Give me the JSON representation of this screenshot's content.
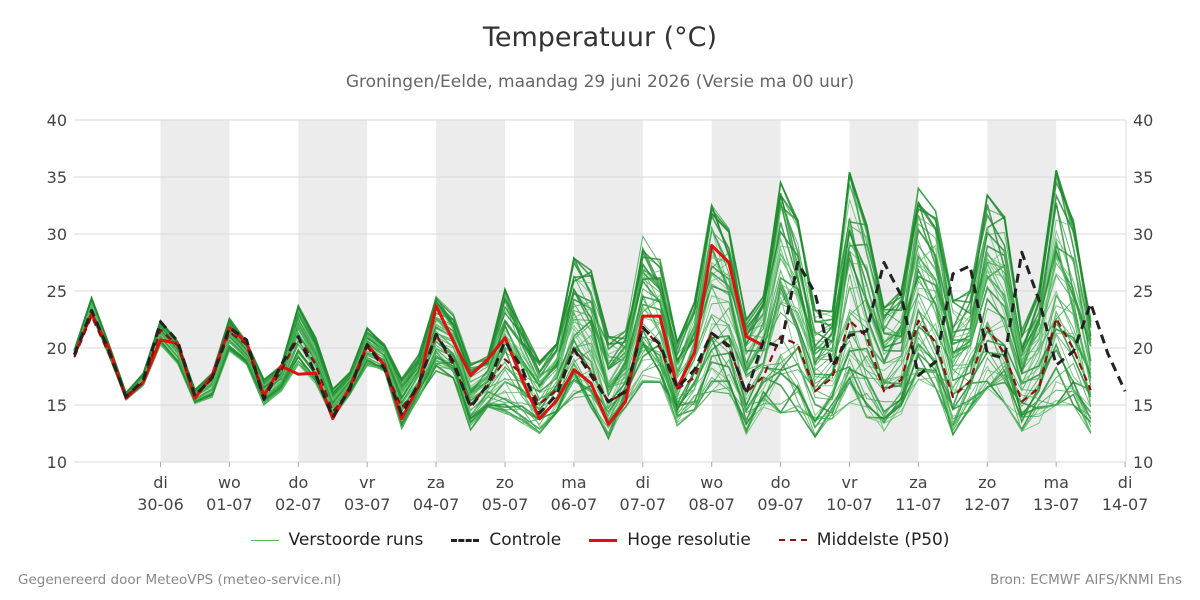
{
  "header": {
    "title": "Temperatuur (°C)",
    "subtitle": "Groningen/Eelde, maandag 29 juni 2026 (Versie ma 00 uur)"
  },
  "footer": {
    "left": "Gegenereerd door MeteoVPS (meteo-service.nl)",
    "right": "Bron: ECMWF AIFS/KNMI Ens"
  },
  "colors": {
    "ensemble": "#2e9e3e",
    "control": "#222222",
    "hires": "#e01010",
    "median": "#8b1010",
    "weekend_band": "#ececec",
    "grid": "#d9d9d9"
  },
  "chart_data": {
    "type": "line",
    "title": "Temperatuur (°C)",
    "ylabel": "",
    "ylim": [
      10,
      40
    ],
    "yticks": [
      10,
      15,
      20,
      25,
      30,
      35,
      40
    ],
    "xlim": [
      "2026-06-29",
      "2026-07-14"
    ],
    "x_resolution": "6-hourly",
    "x_ticks": [
      {
        "day": "di",
        "date": "30-06"
      },
      {
        "day": "wo",
        "date": "01-07"
      },
      {
        "day": "do",
        "date": "02-07"
      },
      {
        "day": "vr",
        "date": "03-07"
      },
      {
        "day": "za",
        "date": "04-07"
      },
      {
        "day": "zo",
        "date": "05-07"
      },
      {
        "day": "ma",
        "date": "06-07"
      },
      {
        "day": "di",
        "date": "07-07"
      },
      {
        "day": "wo",
        "date": "08-07"
      },
      {
        "day": "do",
        "date": "09-07"
      },
      {
        "day": "vr",
        "date": "10-07"
      },
      {
        "day": "za",
        "date": "11-07"
      },
      {
        "day": "zo",
        "date": "12-07"
      },
      {
        "day": "ma",
        "date": "13-07"
      },
      {
        "day": "di",
        "date": "14-07"
      }
    ],
    "shaded_days": [
      "30-06",
      "02-07",
      "04-07",
      "06-07",
      "08-07",
      "10-07",
      "12-07"
    ],
    "grid": true,
    "legend_position": "bottom-center",
    "series": [
      {
        "name": "Controle",
        "style": "dashed",
        "values": [
          19.4,
          23.3,
          19.8,
          15.7,
          17.2,
          22.3,
          20.6,
          15.8,
          17.4,
          21.8,
          20.7,
          15.5,
          18.5,
          21.0,
          17.7,
          13.9,
          16.5,
          20.3,
          18.2,
          14.2,
          16.9,
          21.2,
          18.8,
          14.8,
          16.8,
          20.6,
          18.2,
          14.3,
          15.9,
          19.9,
          17.6,
          15.3,
          16.2,
          21.8,
          20.3,
          16.5,
          18.1,
          21.3,
          20.2,
          16.0,
          20.6,
          20.1,
          27.5,
          24.8,
          18.4,
          21.1,
          21.5,
          27.5,
          24.6,
          17.6,
          18.8,
          26.5,
          27.2,
          19.5,
          19.1,
          28.4,
          24.2,
          18.5,
          19.7,
          23.9,
          19.5,
          16.2
        ]
      },
      {
        "name": "Hoge resolutie",
        "style": "solid",
        "values": [
          19.4,
          23.0,
          20.0,
          15.6,
          17.0,
          20.7,
          20.4,
          15.6,
          17.6,
          21.8,
          20.5,
          15.8,
          18.4,
          17.7,
          17.8,
          13.8,
          16.6,
          20.3,
          18.5,
          13.8,
          16.7,
          23.7,
          20.6,
          17.6,
          19.0,
          20.9,
          17.2,
          13.8,
          15.4,
          18.1,
          16.9,
          13.3,
          15.3,
          22.8,
          22.8,
          16.5,
          19.6,
          29.0,
          27.5,
          21.0,
          20.2
        ]
      },
      {
        "name": "Middelste (P50)",
        "style": "dashed",
        "values": [
          19.2,
          22.8,
          19.5,
          15.8,
          17.0,
          21.6,
          20.2,
          15.9,
          17.3,
          21.4,
          20.3,
          15.6,
          18.0,
          20.9,
          18.6,
          14.4,
          16.3,
          20.1,
          18.2,
          14.8,
          16.6,
          21.2,
          18.5,
          15.0,
          16.7,
          19.0,
          17.7,
          15.1,
          16.3,
          19.9,
          18.0,
          15.3,
          16.1,
          21.9,
          20.0,
          16.4,
          17.4,
          21.4,
          20.0,
          16.1,
          17.5,
          21.0,
          20.3,
          16.2,
          17.4,
          22.4,
          21.0,
          16.2,
          17.2,
          22.4,
          20.5,
          15.7,
          17.1,
          21.8,
          19.5,
          15.3,
          16.5,
          22.6,
          19.9,
          16.3
        ]
      },
      {
        "name": "Verstoorde runs",
        "style": "thin",
        "member_count": 50,
        "range_min": [
          18.5,
          21.5,
          18.5,
          15.0,
          16.0,
          19.0,
          17.5,
          14.5,
          14.7,
          18.5,
          17.8,
          14.2,
          15.5,
          17.0,
          15.8,
          13.2,
          15.5,
          17.8,
          17.5,
          12.2,
          14.8,
          17.2,
          16.8,
          12.3,
          14.5,
          13.6,
          13.0,
          12.3,
          14.2,
          15.5,
          14.8,
          12.0,
          14.8,
          17.0,
          17.0,
          13.2,
          14.5,
          16.2,
          16.0,
          12.3,
          14.8,
          14.3,
          14.5,
          12.2,
          13.8,
          15.2,
          13.9,
          12.7,
          14.2,
          17.2,
          16.5,
          12.4,
          14.5,
          16.5,
          15.2,
          12.7,
          13.4,
          15.0,
          15.0,
          12.5
        ],
        "range_max": [
          20.5,
          25.8,
          21.2,
          16.5,
          18.5,
          23.7,
          21.7,
          17.0,
          18.8,
          23.8,
          21.3,
          18.0,
          19.2,
          25.6,
          22.1,
          17.0,
          18.3,
          22.4,
          20.8,
          18.0,
          20.0,
          25.3,
          23.6,
          19.2,
          19.6,
          25.8,
          22.2,
          19.0,
          20.5,
          28.0,
          26.8,
          21.0,
          21.5,
          29.8,
          27.8,
          20.5,
          24.0,
          32.5,
          30.5,
          22.5,
          24.5,
          34.5,
          31.2,
          23.3,
          23.2,
          35.4,
          30.8,
          23.5,
          25.0,
          34.0,
          32.0,
          24.2,
          25.0,
          33.4,
          31.5,
          21.5,
          25.0,
          35.6,
          31.2,
          22.5
        ]
      }
    ]
  },
  "legend": {
    "ensemble": "Verstoorde runs",
    "control": "Controle",
    "hires": "Hoge resolutie",
    "median": "Middelste (P50)"
  }
}
